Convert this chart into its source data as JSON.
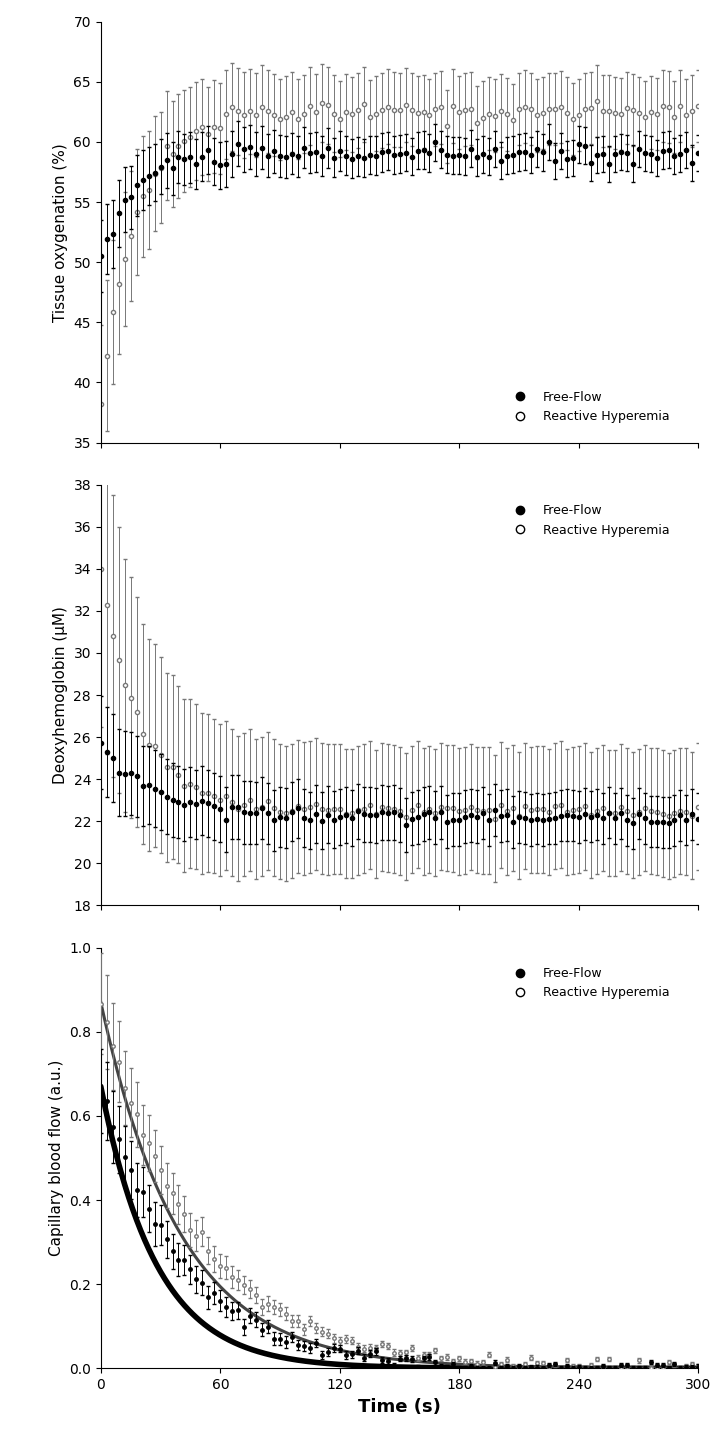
{
  "panel1": {
    "ylabel": "Tissue oxygenation (%)",
    "ylim": [
      35,
      70
    ],
    "yticks": [
      35,
      40,
      45,
      50,
      55,
      60,
      65,
      70
    ],
    "ff_y0": 50.0,
    "ff_plateau": 59.0,
    "ff_tau": 15,
    "rh_y0": 39.0,
    "rh_plateau": 62.5,
    "rh_tau": 18,
    "ff_sem_base": 1.5,
    "ff_sem_amp": 1.5,
    "ff_sem_tau": 50,
    "rh_sem_base": 3.0,
    "rh_sem_amp": 3.5,
    "rh_sem_tau": 40,
    "noise_ff": 0.4,
    "noise_rh": 0.4
  },
  "panel2": {
    "ylabel": "Deoxyhemoglobin (μM)",
    "ylim": [
      18,
      38
    ],
    "yticks": [
      18,
      20,
      22,
      24,
      26,
      28,
      30,
      32,
      34,
      36,
      38
    ],
    "ff_y0": 25.6,
    "ff_plateau": 22.2,
    "ff_tau": 28,
    "rh_y0": 33.8,
    "rh_plateau": 22.5,
    "rh_tau": 20,
    "ff_sem_base": 1.2,
    "ff_sem_amp": 1.0,
    "ff_sem_tau": 60,
    "rh_sem_base": 3.0,
    "rh_sem_amp": 4.5,
    "rh_sem_tau": 30,
    "noise_ff": 0.15,
    "noise_rh": 0.15
  },
  "panel3": {
    "ylabel": "Capillary blood flow (a.u.)",
    "xlabel": "Time (s)",
    "ylim": [
      0.0,
      1.0
    ],
    "yticks": [
      0.0,
      0.2,
      0.4,
      0.6,
      0.8,
      1.0
    ],
    "ff_y0": 0.67,
    "ff_tau_fit": 28,
    "ff_tau_data": 42,
    "rh_y0": 0.87,
    "rh_tau_fit": 40,
    "rh_tau_data": 48,
    "ff_sem_start": 0.1,
    "ff_sem_end": 0.005,
    "rh_sem_start": 0.12,
    "rh_sem_end": 0.005,
    "sem_tau": 38
  },
  "t_step_panels12": 3,
  "t_step_panel3": 3,
  "xlim": [
    0,
    300
  ],
  "xticks": [
    0,
    60,
    120,
    180,
    240,
    300
  ],
  "color_ff": "#000000",
  "color_rh": "#777777",
  "marker_size": 3,
  "err_capsize": 1.5,
  "err_linewidth": 0.7,
  "legend_fontsize": 9,
  "tick_fontsize": 10,
  "label_fontsize": 11,
  "xlabel_fontsize": 13
}
